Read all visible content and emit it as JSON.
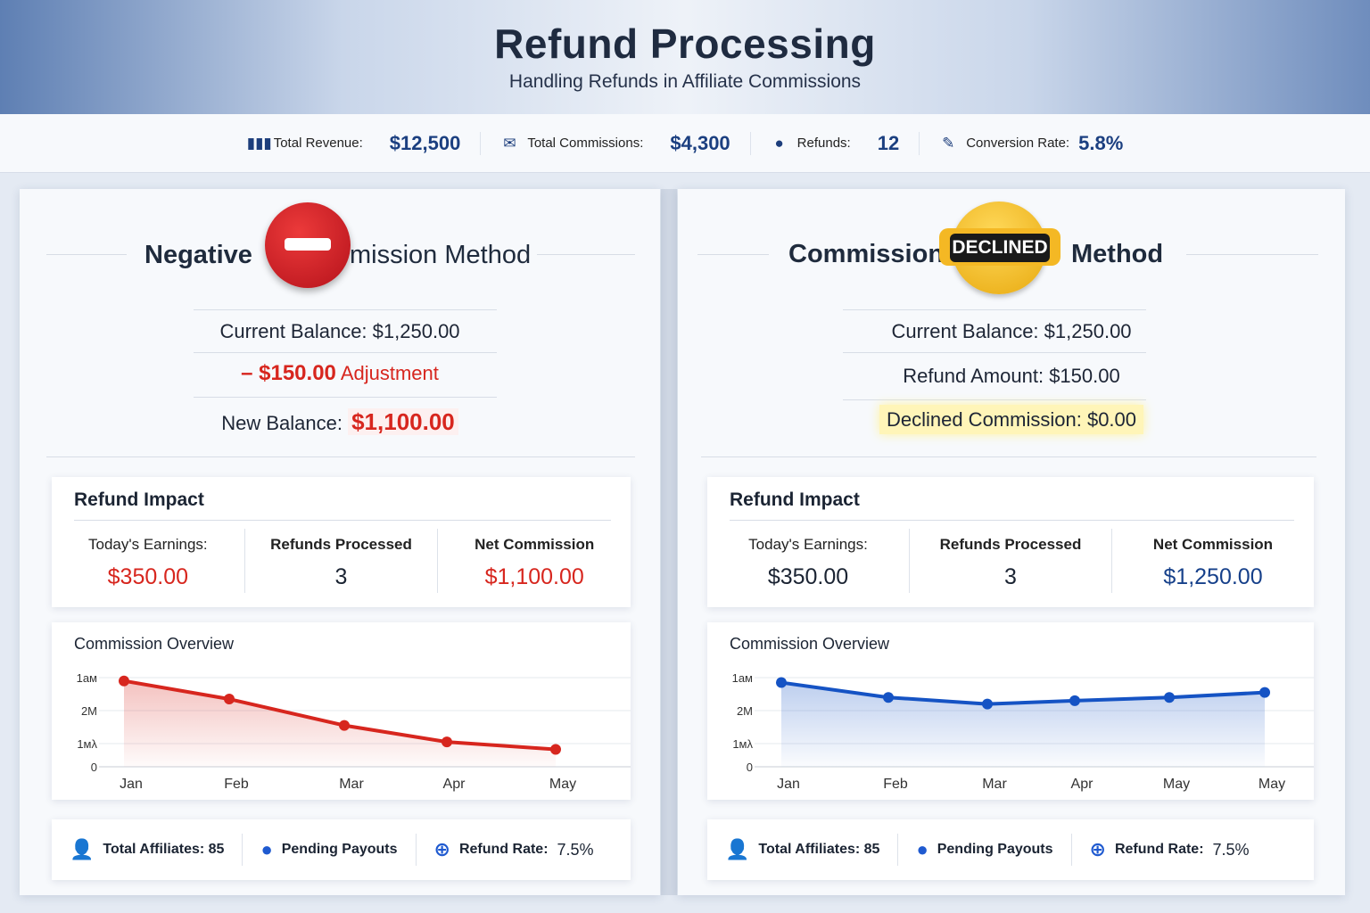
{
  "header": {
    "title": "Refund Processing",
    "subtitle": "Handling Refunds in Affiliate Commissions"
  },
  "stats": [
    {
      "icon": "bar-chart-icon",
      "label": "Total Revenue:",
      "value": "$12,500"
    },
    {
      "icon": "envelope-icon",
      "label": "Total Commissions:",
      "value": "$4,300"
    },
    {
      "icon": "location-pin-icon",
      "label": "Refunds:",
      "value": "12"
    },
    {
      "icon": "pencil-icon",
      "label": "Conversion Rate:",
      "value": "5.8%"
    }
  ],
  "left": {
    "title_a": "Negative",
    "title_b": "mission Method",
    "badge_icon": "no-entry-icon",
    "current_label": "Current Balance:",
    "current_value": "$1,250.00",
    "adjust_value": "– $150.00",
    "adjust_label": "Adjustment",
    "new_label": "New Balance:",
    "new_value": "$1,100.00",
    "impact": {
      "title": "Refund Impact",
      "cols": [
        {
          "h": "Today's Earnings:",
          "v": "$350.00"
        },
        {
          "h": "Refunds Processed",
          "v": "3"
        },
        {
          "h": "Net Commission",
          "v": "$1,100.00"
        }
      ]
    },
    "footer": [
      {
        "icon": "user-icon",
        "label": "Total Affiliates: 85"
      },
      {
        "icon": "person-icon",
        "label": "Pending Payouts"
      },
      {
        "icon": "plus-circle-icon",
        "label": "Refund Rate:",
        "value": "7.5%"
      }
    ]
  },
  "right": {
    "title_a": "Commission",
    "title_b": "Method",
    "badge": "DECLINED",
    "current_label": "Current Balance:",
    "current_value": "$1,250.00",
    "refund_label": "Refund Amount:",
    "refund_value": "$150.00",
    "declined_label": "Declined Commission:",
    "declined_value": "$0.00",
    "impact": {
      "title": "Refund Impact",
      "cols": [
        {
          "h": "Today's Earnings:",
          "v": "$350.00"
        },
        {
          "h": "Refunds Processed",
          "v": "3"
        },
        {
          "h": "Net Commission",
          "v": "$1,250.00"
        }
      ]
    },
    "footer": [
      {
        "icon": "user-icon",
        "label": "Total Affiliates: 85"
      },
      {
        "icon": "person-icon",
        "label": "Pending Payouts"
      },
      {
        "icon": "plus-circle-icon",
        "label": "Refund Rate:",
        "value": "7.5%"
      }
    ]
  },
  "chart_data": [
    {
      "type": "area",
      "title": "Commission Overview",
      "categories": [
        "Jan",
        "Feb",
        "Mar",
        "Apr",
        "May"
      ],
      "yticks": [
        "0",
        "1мλ",
        "2M",
        "1aм"
      ],
      "values": [
        2.9,
        2.35,
        1.55,
        1.05,
        0.75
      ],
      "ylim": [
        0,
        3
      ],
      "color": "#d7261e",
      "grid": true
    },
    {
      "type": "area",
      "title": "Commission Overview",
      "categories": [
        "Jan",
        "Feb",
        "Mar",
        "Apr",
        "May",
        "May"
      ],
      "yticks": [
        "0",
        "1мλ",
        "2M",
        "1aм"
      ],
      "values": [
        2.85,
        2.4,
        2.2,
        2.3,
        2.4,
        2.55
      ],
      "ylim": [
        0,
        3
      ],
      "color": "#1553c4",
      "grid": true
    }
  ]
}
